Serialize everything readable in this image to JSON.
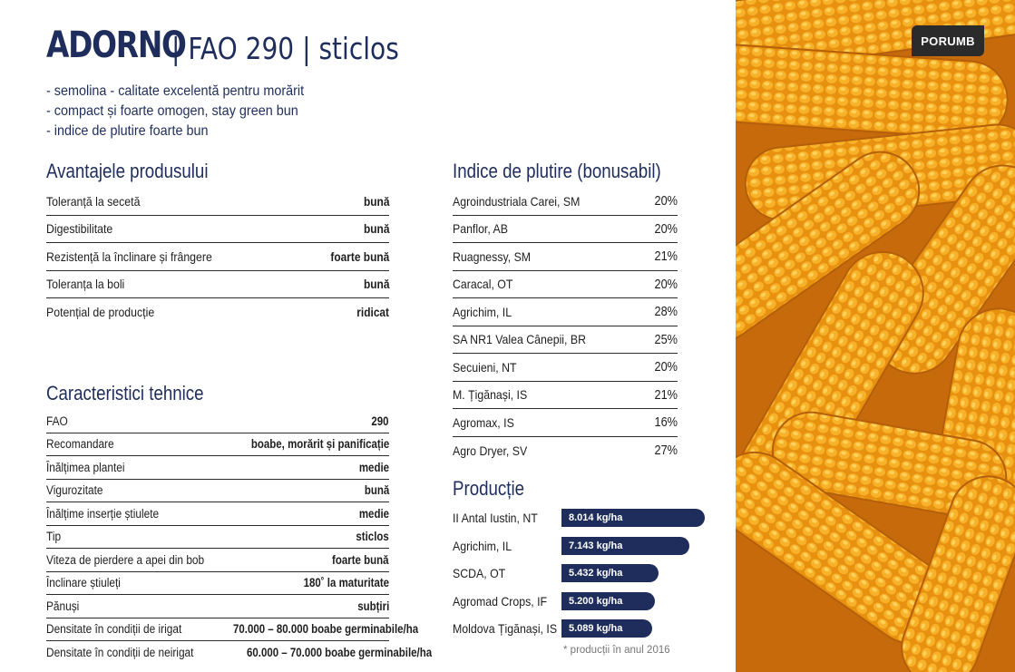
{
  "title": {
    "main": "ADORNO",
    "rest": "| FAO 290 | sticlos"
  },
  "bullets": [
    "- semolina - calitate excelentă pentru morărit",
    "- compact și foarte omogen, stay green bun",
    "- indice de plutire foarte bun"
  ],
  "advantages": {
    "heading": "Avantajele produsului",
    "rows": [
      {
        "k": "Toleranță la secetă",
        "v": "bună"
      },
      {
        "k": "Digestibilitate",
        "v": "bună"
      },
      {
        "k": "Rezistență la înclinare și frângere",
        "v": "foarte bună"
      },
      {
        "k": "Toleranța la boli",
        "v": "bună"
      },
      {
        "k": "Potențial de producție",
        "v": "ridicat"
      }
    ]
  },
  "technical": {
    "heading": "Caracteristici tehnice",
    "rows": [
      {
        "k": "FAO",
        "v": "290"
      },
      {
        "k": "Recomandare",
        "v": "boabe, morărit și panificație"
      },
      {
        "k": "Înălțimea plantei",
        "v": "medie"
      },
      {
        "k": "Vigurozitate",
        "v": "bună"
      },
      {
        "k": "Înălțime inserție știulete",
        "v": "medie"
      },
      {
        "k": "Tip",
        "v": "sticlos"
      },
      {
        "k": "Viteza de pierdere a apei din bob",
        "v": "foarte bună"
      },
      {
        "k": "Înclinare știuleți",
        "v": "180˚ la maturitate"
      },
      {
        "k": "Pănuși",
        "v": "subțiri"
      },
      {
        "k": "Densitate în condiții de irigat",
        "v": "70.000 – 80.000 boabe germinabile/ha"
      },
      {
        "k": "Densitate în condiții de neirigat",
        "v": "60.000 – 70.000 boabe germinabile/ha"
      }
    ]
  },
  "float_index": {
    "heading": "Indice de plutire (bonusabil)",
    "rows": [
      {
        "k": "Agroindustriala Carei, SM",
        "v": "20%"
      },
      {
        "k": "Panflor, AB",
        "v": "20%"
      },
      {
        "k": "Ruagnessy, SM",
        "v": "21%"
      },
      {
        "k": "Caracal,  OT",
        "v": "20%"
      },
      {
        "k": "Agrichim, IL",
        "v": "28%"
      },
      {
        "k": "SA NR1 Valea Cânepii, BR",
        "v": "25%"
      },
      {
        "k": "Secuieni, NT",
        "v": "20%"
      },
      {
        "k": "M. Țigănași, IS",
        "v": "21%"
      },
      {
        "k": "Agromax, IS",
        "v": "16%"
      },
      {
        "k": "Agro Dryer, SV",
        "v": "27%"
      }
    ]
  },
  "production": {
    "heading": "Producție",
    "note": "* producții în anul 2016",
    "color": "#1e2d5c",
    "rows": [
      {
        "k": "II Antal Iustin, NT",
        "v": "8.014 kg/ha",
        "value": 8014
      },
      {
        "k": "Agrichim, IL",
        "v": "7.143 kg/ha",
        "value": 7143
      },
      {
        "k": "SCDA, OT",
        "v": "5.432 kg/ha",
        "value": 5432
      },
      {
        "k": "Agromad Crops, IF",
        "v": "5.200 kg/ha",
        "value": 5200
      },
      {
        "k": "Moldova Țigănași, IS",
        "v": "5.089 kg/ha",
        "value": 5089
      }
    ]
  },
  "badge": "PORUMB"
}
